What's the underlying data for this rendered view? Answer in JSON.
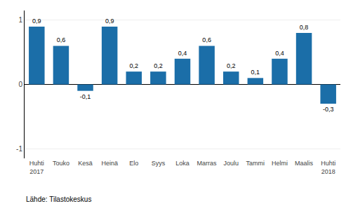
{
  "chart_data": {
    "type": "bar",
    "categories": [
      "Huhti\n2017",
      "Touko",
      "Kesä",
      "Heinä",
      "Elo",
      "Syys",
      "Loka",
      "Marras",
      "Joulu",
      "Tammi",
      "Helmi",
      "Maalis",
      "Huhti\n2018"
    ],
    "values": [
      0.9,
      0.6,
      -0.1,
      0.9,
      0.2,
      0.2,
      0.4,
      0.6,
      0.2,
      0.1,
      0.4,
      0.8,
      -0.3
    ],
    "value_labels": [
      "0,9",
      "0,6",
      "-0,1",
      "0,9",
      "0,2",
      "0,2",
      "0,4",
      "0,6",
      "0,2",
      "0,1",
      "0,4",
      "0,8",
      "-0,3"
    ],
    "data_labels": true,
    "color": "#1b6ea8",
    "ylim": [
      -1.15,
      1.15
    ],
    "yticks": [
      -1,
      0,
      1
    ],
    "grid": true,
    "annotations": [
      "Lähde: Tilastokeskus"
    ]
  }
}
